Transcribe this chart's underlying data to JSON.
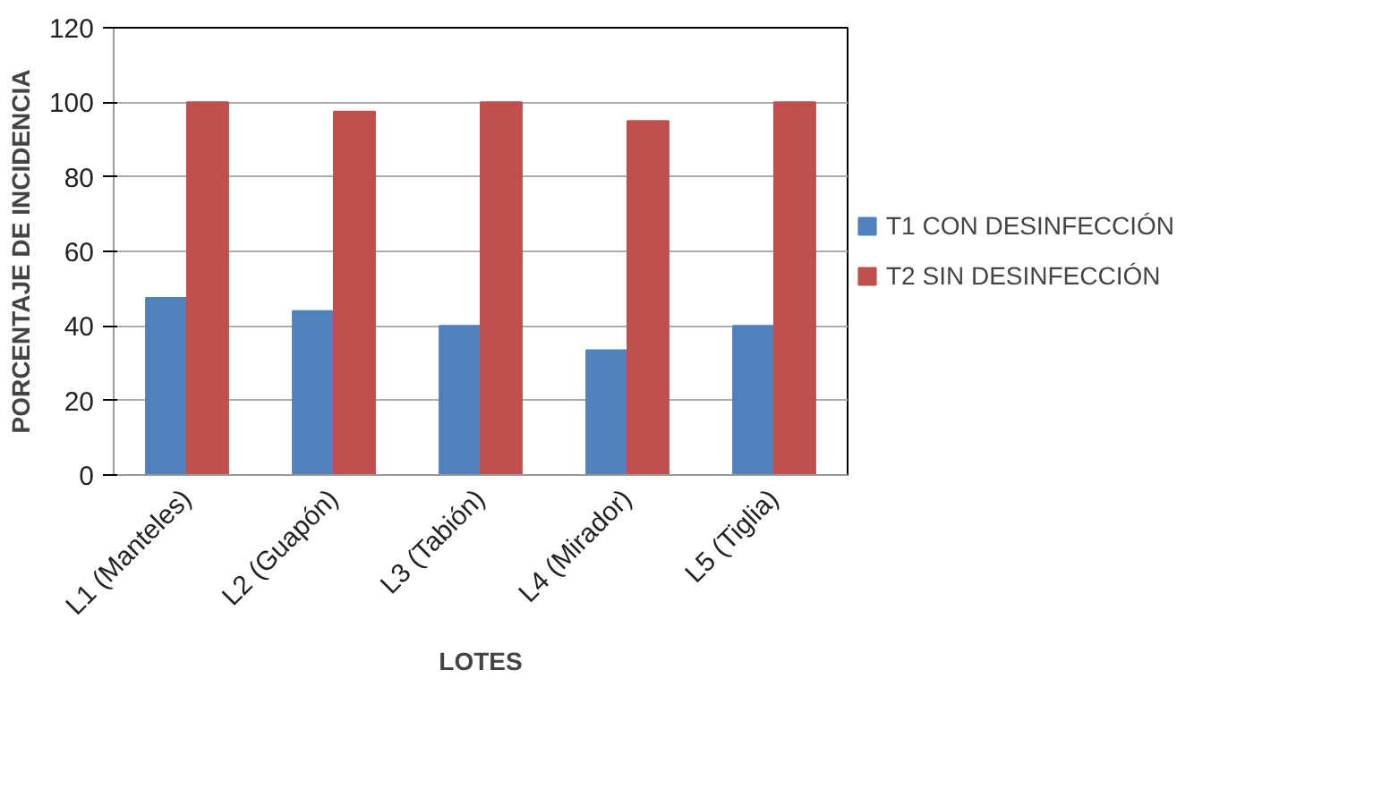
{
  "chart_data": {
    "type": "bar",
    "xlabel": "LOTES",
    "ylabel": "PORCENTAJE DE INCIDENCIA",
    "categories": [
      "L1 (Manteles)",
      "L2 (Guapón)",
      "L3 (Tabión)",
      "L4 (Mirador)",
      "L5 (Tiglia)"
    ],
    "series": [
      {
        "name": "T1 CON DESINFECCIÓN",
        "color": "#4f81bd",
        "values": [
          47.5,
          44,
          40,
          33.5,
          40
        ]
      },
      {
        "name": "T2 SIN DESINFECCIÓN",
        "color": "#c0504d",
        "values": [
          100,
          97.5,
          100,
          95,
          100
        ]
      }
    ],
    "ylim": [
      0,
      120
    ],
    "yticks": [
      0,
      20,
      40,
      60,
      80,
      100,
      120
    ],
    "grid": "y",
    "legend": "right"
  }
}
